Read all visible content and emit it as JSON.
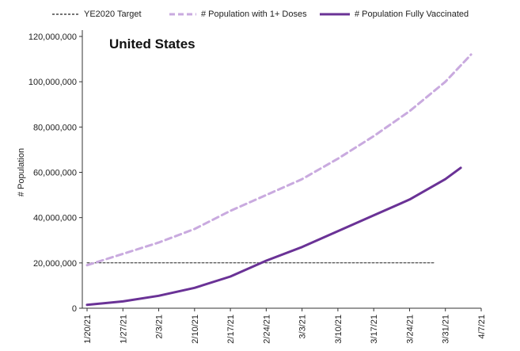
{
  "chart_data": {
    "type": "line",
    "title": "United States",
    "ylabel": "# Population",
    "xlabel": "",
    "ylim": [
      0,
      120000000
    ],
    "yticks": [
      0,
      20000000,
      40000000,
      60000000,
      80000000,
      100000000,
      120000000
    ],
    "ytick_labels": [
      "0",
      "20,000,000",
      "40,000,000",
      "60,000,000",
      "80,000,000",
      "100,000,000",
      "120,000,000"
    ],
    "xtick_labels": [
      "1/20/21",
      "1/27/21",
      "2/3/21",
      "2/10/21",
      "2/17/21",
      "2/24/21",
      "3/3/21",
      "3/10/21",
      "3/17/21",
      "3/24/21",
      "3/31/21",
      "4/7/21"
    ],
    "x_range_days": [
      0,
      77
    ],
    "legend": [
      "YE2020 Target",
      "# Population with 1+ Doses",
      "# Population Fully Vaccinated"
    ],
    "colors": {
      "target": "#222222",
      "one_dose": "#c9aadf",
      "fully": "#6a3296"
    },
    "series": [
      {
        "name": "YE2020 Target",
        "style": "dotted",
        "x_days": [
          0,
          68
        ],
        "values": [
          20000000,
          20000000
        ]
      },
      {
        "name": "# Population with 1+ Doses",
        "style": "dashed",
        "x_days": [
          0,
          7,
          14,
          21,
          28,
          35,
          42,
          49,
          56,
          63,
          70,
          75
        ],
        "values": [
          19000000,
          24000000,
          29000000,
          35000000,
          43000000,
          50000000,
          57000000,
          66000000,
          76000000,
          87000000,
          100000000,
          112000000
        ]
      },
      {
        "name": "# Population Fully Vaccinated",
        "style": "solid",
        "x_days": [
          0,
          7,
          14,
          21,
          28,
          35,
          42,
          49,
          56,
          63,
          70,
          73
        ],
        "values": [
          1500000,
          3000000,
          5500000,
          9000000,
          14000000,
          21000000,
          27000000,
          34000000,
          41000000,
          48000000,
          57000000,
          62000000
        ]
      }
    ]
  }
}
